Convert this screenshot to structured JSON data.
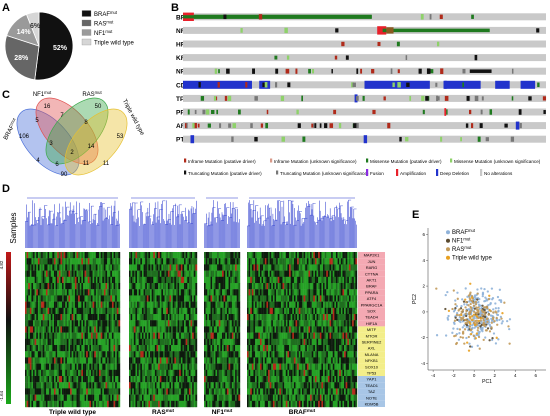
{
  "panels": {
    "a": {
      "label": "A",
      "chart_data": {
        "type": "pie",
        "slices": [
          {
            "name": "BRAF",
            "sup": "mut",
            "value": 52,
            "label": "52%",
            "color": "#111111"
          },
          {
            "name": "RAS",
            "sup": "mut",
            "value": 28,
            "label": "28%",
            "color": "#666666"
          },
          {
            "name": "NF1",
            "sup": "mut",
            "value": 14,
            "label": "14%",
            "color": "#9a9a9a"
          },
          {
            "name": "Triple wild type",
            "sup": "",
            "value": 6,
            "label": "6%",
            "color": "#d6d6d6"
          }
        ]
      }
    },
    "b": {
      "label": "B",
      "chart_data": {
        "type": "heatmap",
        "rows": [
          "BRAF",
          "NRAS",
          "HRAS",
          "KRAS",
          "NF1",
          "CDKN2A",
          "TP53",
          "PPP6C",
          "ARID2",
          "PTEN"
        ],
        "background": "#c9c9c9",
        "legend": [
          {
            "label": "Inframe Mutation (putative driver)",
            "color": "#b02a1a",
            "style": "short"
          },
          {
            "label": "Inframe Mutation (unknown significance)",
            "color": "#d89a8a",
            "style": "short"
          },
          {
            "label": "Missense Mutation (putative driver)",
            "color": "#1f7a1f",
            "style": "short"
          },
          {
            "label": "Missense Mutation (unknown significance)",
            "color": "#8ed16a",
            "style": "short"
          },
          {
            "label": "Truncating Mutation (putative driver)",
            "color": "#111111",
            "style": "short"
          },
          {
            "label": "Truncating Mutation (unknown significance)",
            "color": "#777777",
            "style": "short"
          },
          {
            "label": "Fusion",
            "color": "#8a2be2",
            "style": "tall"
          },
          {
            "label": "Amplification",
            "color": "#e8202a",
            "style": "tall"
          },
          {
            "label": "Deep Deletion",
            "color": "#2233cc",
            "style": "tall"
          },
          {
            "label": "No alterations",
            "color": "#c9c9c9",
            "style": "tall"
          }
        ]
      }
    },
    "c": {
      "label": "C",
      "chart_data": {
        "type": "venn",
        "sets": [
          {
            "name": "BRAF",
            "sup": "mut",
            "color": "#4a6fd8"
          },
          {
            "name": "NF1",
            "sup": "mut",
            "color": "#e05050"
          },
          {
            "name": "RAS",
            "sup": "mut",
            "color": "#3aa84a"
          },
          {
            "name": "Triple wild type",
            "sup": "",
            "color": "#e6c030"
          }
        ],
        "regions": [
          "106",
          "16",
          "50",
          "90",
          "5",
          "7",
          "53",
          "11",
          "4",
          "3",
          "8",
          "6",
          "2",
          "14",
          "11"
        ]
      }
    },
    "d": {
      "label": "D",
      "samples_label": "Samples",
      "scale_max": "4.82",
      "scale_min": "-1.64",
      "groups": [
        {
          "name": "Triple wild type",
          "sup": ""
        },
        {
          "name": "RAS",
          "sup": "mut"
        },
        {
          "name": "NF1",
          "sup": "mut"
        },
        {
          "name": "BRAF",
          "sup": "mut"
        }
      ],
      "genes": [
        "MAP2K1",
        "JUN",
        "RARG",
        "CTTNA",
        "AKT1",
        "BRAF",
        "PPARA",
        "ATF4",
        "PPARGC1A",
        "SOX",
        "TEAD4",
        "HIF1A",
        "MITF",
        "MTOR",
        "SERPINE2",
        "AXL",
        "MLANA",
        "NFKB1",
        "SOX10",
        "TP53",
        "YAP1",
        "TEAD1",
        "TAZ",
        "NOTE",
        "KDM5B"
      ],
      "gene_colors": [
        "#f4a9b3",
        "#f4a9b3",
        "#f4a9b3",
        "#f4a9b3",
        "#f4a9b3",
        "#f4a9b3",
        "#f4a9b3",
        "#f4a9b3",
        "#f4a9b3",
        "#f4a9b3",
        "#f4a9b3",
        "#f4a9b3",
        "#f3ee8a",
        "#f3ee8a",
        "#f3ee8a",
        "#f3ee8a",
        "#f3ee8a",
        "#f3ee8a",
        "#f3ee8a",
        "#f3ee8a",
        "#a8c6e6",
        "#a8c6e6",
        "#a8c6e6",
        "#a8c6e6",
        "#a8c6e6"
      ]
    },
    "e": {
      "label": "E",
      "chart_data": {
        "type": "scatter",
        "xlabel": "PC1",
        "ylabel": "PC2",
        "xlim": [
          -4.5,
          7
        ],
        "ylim": [
          -4.5,
          6.5
        ],
        "xticks": [
          "-4",
          "-2",
          "0",
          "2",
          "4",
          "6"
        ],
        "yticks": [
          "-4",
          "-2",
          "0",
          "2",
          "4",
          "6"
        ],
        "series": [
          {
            "name": "BRAF",
            "sup": "mut",
            "color": "#8fb2d9"
          },
          {
            "name": "NF1",
            "sup": "mut",
            "color": "#5a4a30"
          },
          {
            "name": "RAS",
            "sup": "mut",
            "color": "#c29a5a"
          },
          {
            "name": "Triple wild type",
            "sup": "",
            "color": "#e8a020"
          }
        ]
      }
    }
  }
}
